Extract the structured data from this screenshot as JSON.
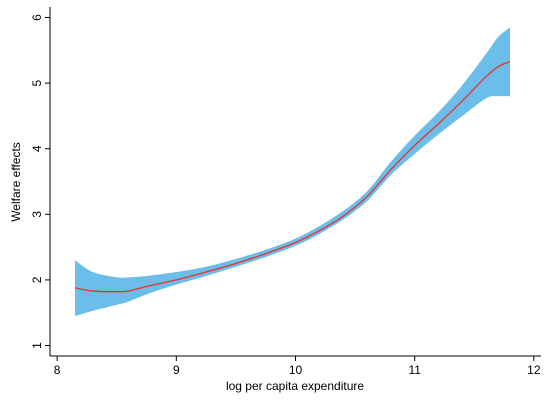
{
  "chart_data": {
    "type": "area",
    "title": "",
    "xlabel": "log per capita expenditure",
    "ylabel": "Welfare effects",
    "xlim": [
      7.94,
      12.06
    ],
    "ylim": [
      0.84,
      6.16
    ],
    "xticks": [
      8,
      9,
      10,
      11,
      12
    ],
    "yticks": [
      1,
      2,
      3,
      4,
      5,
      6
    ],
    "grid": false,
    "legend": "none",
    "band_color": "#6cbde9",
    "line_color": "#e8302a",
    "series": [
      {
        "type": "line",
        "x": [
          8.15,
          8.3,
          8.5,
          8.6,
          8.75,
          9.0,
          9.25,
          9.5,
          9.75,
          10.0,
          10.2,
          10.4,
          10.6,
          10.8,
          11.0,
          11.2,
          11.4,
          11.6,
          11.7,
          11.8
        ],
        "y": [
          1.88,
          1.83,
          1.82,
          1.83,
          1.9,
          2.0,
          2.12,
          2.25,
          2.4,
          2.57,
          2.75,
          2.97,
          3.27,
          3.68,
          4.05,
          4.38,
          4.73,
          5.1,
          5.25,
          5.33
        ]
      },
      {
        "type": "band",
        "x": [
          8.15,
          8.3,
          8.5,
          8.6,
          8.75,
          9.0,
          9.25,
          9.5,
          9.75,
          10.0,
          10.2,
          10.4,
          10.6,
          10.8,
          11.0,
          11.2,
          11.4,
          11.6,
          11.7,
          11.8
        ],
        "lower": [
          1.45,
          1.53,
          1.62,
          1.67,
          1.78,
          1.93,
          2.06,
          2.2,
          2.35,
          2.52,
          2.7,
          2.92,
          3.2,
          3.6,
          3.92,
          4.22,
          4.5,
          4.77,
          4.8,
          4.8
        ],
        "upper": [
          2.3,
          2.12,
          2.04,
          2.04,
          2.06,
          2.12,
          2.2,
          2.32,
          2.46,
          2.63,
          2.82,
          3.05,
          3.35,
          3.8,
          4.2,
          4.56,
          4.97,
          5.45,
          5.7,
          5.85
        ]
      }
    ]
  }
}
